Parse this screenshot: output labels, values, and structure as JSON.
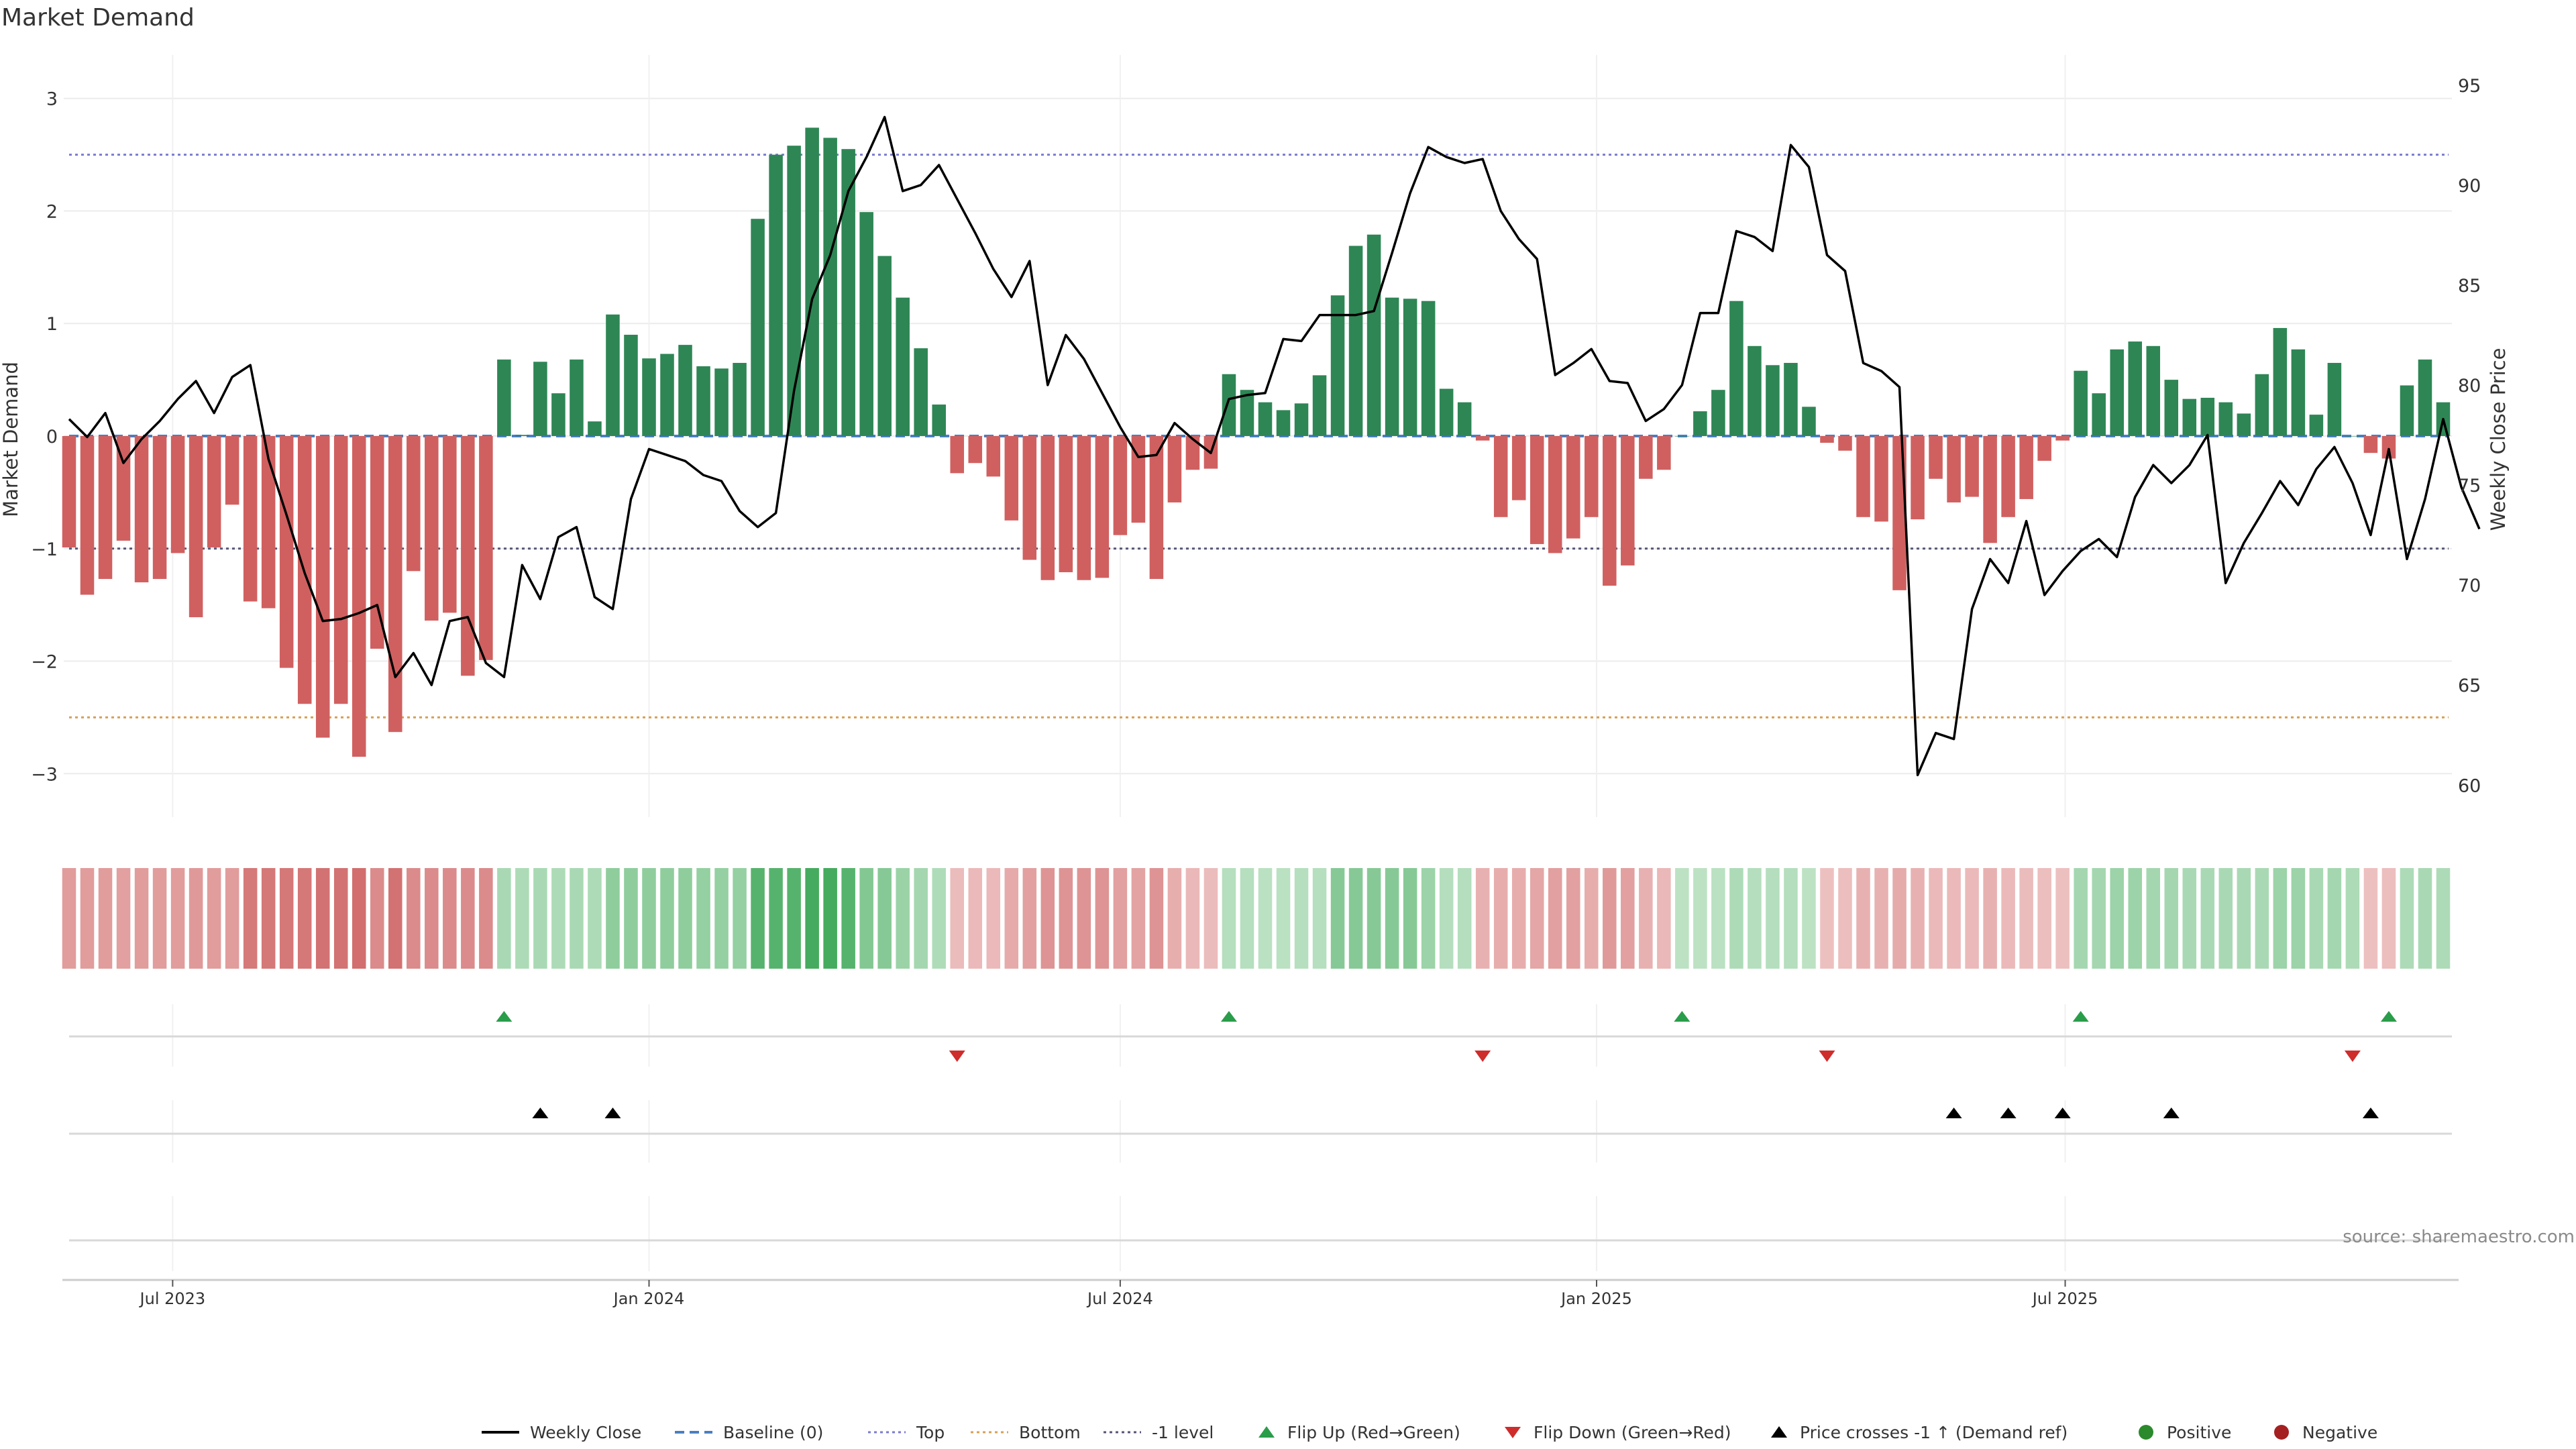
{
  "title": "Market Demand",
  "source": "source: sharemaestro.com",
  "chart_data": {
    "type": "bar+line",
    "start_date": "2023-05-22",
    "interval_days": 7,
    "left_axis": {
      "label": "Market Demand",
      "ylim": [
        -3.35,
        3.35
      ],
      "ticks": [
        3,
        2,
        1,
        0,
        -1,
        -2,
        -3
      ],
      "tick_labels": [
        "3",
        "2",
        "1",
        "0",
        "−1",
        "−2",
        "−3"
      ]
    },
    "right_axis": {
      "label": "Weekly Close Price",
      "ylim": [
        58.6,
        96.3
      ],
      "ticks": [
        95,
        90,
        85,
        80,
        75,
        70,
        65,
        60
      ],
      "tick_labels": [
        "95",
        "90",
        "85",
        "80",
        "75",
        "70",
        "65",
        "60"
      ]
    },
    "x_ticks": [
      {
        "label": "Jul 2023",
        "date": "2023-07-01"
      },
      {
        "label": "Jan 2024",
        "date": "2024-01-01"
      },
      {
        "label": "Jul 2024",
        "date": "2024-07-01"
      },
      {
        "label": "Jan 2025",
        "date": "2025-01-01"
      },
      {
        "label": "Jul 2025",
        "date": "2025-07-01"
      }
    ],
    "reference_lines": [
      {
        "name": "Top",
        "value": 2.5,
        "color": "#7b7bd0",
        "style": "dotted"
      },
      {
        "name": "Bottom",
        "value": -2.5,
        "color": "#d8a055",
        "style": "dotted"
      },
      {
        "name": "-1 level",
        "value": -1,
        "color": "#555577",
        "style": "dotted"
      },
      {
        "name": "Baseline (0)",
        "value": 0,
        "color": "#4a7fc1",
        "style": "dashed"
      }
    ],
    "demand": [
      -0.99,
      -1.41,
      -1.27,
      -0.93,
      -1.3,
      -1.27,
      -1.04,
      -1.61,
      -0.99,
      -0.61,
      -1.47,
      -1.53,
      -2.06,
      -2.38,
      -2.68,
      -2.38,
      -2.85,
      -1.89,
      -2.63,
      -1.2,
      -1.64,
      -1.57,
      -2.13,
      -1.99,
      0.68,
      0.01,
      0.66,
      0.38,
      0.68,
      0.13,
      1.08,
      0.9,
      0.69,
      0.73,
      0.81,
      0.62,
      0.6,
      0.65,
      1.93,
      2.5,
      2.58,
      2.74,
      2.65,
      2.55,
      1.99,
      1.6,
      1.23,
      0.78,
      0.28,
      -0.33,
      -0.24,
      -0.36,
      -0.75,
      -1.1,
      -1.28,
      -1.21,
      -1.28,
      -1.26,
      -0.88,
      -0.77,
      -1.27,
      -0.59,
      -0.3,
      -0.29,
      0.55,
      0.41,
      0.3,
      0.23,
      0.29,
      0.54,
      1.25,
      1.69,
      1.79,
      1.23,
      1.22,
      1.2,
      0.42,
      0.3,
      -0.04,
      -0.72,
      -0.57,
      -0.96,
      -1.04,
      -0.91,
      -0.72,
      -1.33,
      -1.15,
      -0.38,
      -0.3,
      0.0,
      0.22,
      0.41,
      1.2,
      0.8,
      0.63,
      0.65,
      0.26,
      -0.06,
      -0.13,
      -0.72,
      -0.76,
      -1.37,
      -0.74,
      -0.38,
      -0.59,
      -0.54,
      -0.95,
      -0.72,
      -0.56,
      -0.22,
      -0.04,
      0.58,
      0.38,
      0.77,
      0.84,
      0.8,
      0.5,
      0.33,
      0.34,
      0.3,
      0.2,
      0.55,
      0.96,
      0.77,
      0.19,
      0.65,
      0.0,
      -0.15,
      -0.2,
      0.45,
      0.68,
      0.3
    ],
    "weekly_close": [
      78.3,
      77.4,
      78.6,
      76.1,
      77.3,
      78.2,
      79.3,
      80.2,
      78.6,
      80.4,
      81.0,
      76.3,
      73.5,
      70.6,
      68.2,
      68.3,
      68.6,
      69.0,
      65.4,
      66.6,
      65.0,
      68.2,
      68.4,
      66.1,
      65.4,
      71.0,
      69.3,
      72.4,
      72.9,
      69.4,
      68.8,
      74.3,
      76.8,
      76.5,
      76.2,
      75.5,
      75.2,
      73.7,
      72.9,
      73.6,
      79.7,
      84.3,
      86.5,
      89.7,
      91.4,
      93.4,
      89.7,
      90.0,
      91.0,
      89.3,
      87.6,
      85.8,
      84.4,
      86.2,
      80.0,
      82.5,
      81.3,
      79.6,
      77.9,
      76.4,
      76.5,
      78.1,
      77.3,
      76.6,
      79.3,
      79.5,
      79.6,
      82.3,
      82.2,
      83.5,
      83.5,
      83.5,
      83.7,
      86.6,
      89.6,
      91.9,
      91.4,
      91.1,
      91.3,
      88.7,
      87.3,
      86.3,
      80.5,
      81.1,
      81.8,
      80.2,
      80.1,
      78.2,
      78.8,
      80.0,
      83.6,
      83.6,
      87.7,
      87.4,
      86.7,
      92.0,
      90.9,
      86.5,
      85.7,
      81.1,
      80.7,
      79.9,
      60.5,
      62.6,
      62.3,
      68.8,
      71.3,
      70.1,
      73.2,
      69.5,
      70.7,
      71.7,
      72.3,
      71.4,
      74.4,
      76.0,
      75.1,
      76.0,
      77.5,
      70.1,
      72.1,
      73.6,
      75.2,
      74.0,
      75.8,
      76.9,
      75.1,
      72.5,
      76.8,
      71.3,
      74.3,
      78.3,
      74.9,
      72.8
    ],
    "heat_strip": [
      -0.99,
      -0.99,
      -0.99,
      -0.93,
      -0.99,
      -0.99,
      -0.99,
      -1.05,
      -0.99,
      -0.99,
      -1.6,
      -1.61,
      -1.61,
      -1.61,
      -1.72,
      -1.72,
      -1.79,
      -1.29,
      -1.72,
      -1.29,
      -1.29,
      -1.29,
      -1.29,
      -1.29,
      0.68,
      0.62,
      0.68,
      0.62,
      0.68,
      0.62,
      1.08,
      1.08,
      1.08,
      1.08,
      1.08,
      1.0,
      1.0,
      1.0,
      1.93,
      1.93,
      1.93,
      2.2,
      2.2,
      1.93,
      1.25,
      1.2,
      0.9,
      0.75,
      0.6,
      -0.45,
      -0.49,
      -0.49,
      -0.75,
      -0.93,
      -1.14,
      -1.14,
      -1.14,
      -1.14,
      -0.93,
      -0.88,
      -1.14,
      -0.68,
      -0.52,
      -0.45,
      0.5,
      0.5,
      0.42,
      0.42,
      0.5,
      0.5,
      1.2,
      1.2,
      1.2,
      1.2,
      1.2,
      0.88,
      0.52,
      0.52,
      -0.64,
      -0.7,
      -0.7,
      -0.82,
      -0.93,
      -0.93,
      -0.7,
      -1.05,
      -0.93,
      -0.64,
      -0.52,
      0.4,
      0.4,
      0.42,
      0.62,
      0.52,
      0.52,
      0.52,
      0.4,
      -0.38,
      -0.41,
      -0.64,
      -0.64,
      -0.76,
      -0.64,
      -0.49,
      -0.49,
      -0.49,
      -0.64,
      -0.49,
      -0.45,
      -0.41,
      -0.38,
      0.75,
      0.75,
      0.88,
      0.88,
      0.75,
      0.75,
      0.68,
      0.68,
      0.68,
      0.68,
      0.68,
      0.88,
      0.88,
      0.68,
      0.75,
      0.62,
      -0.38,
      -0.41,
      0.62,
      0.68,
      0.62
    ],
    "flip_up_weeks": [
      24,
      64,
      89,
      111,
      128
    ],
    "flip_down_weeks": [
      49,
      78,
      97,
      126
    ],
    "price_cross_weeks": [
      26,
      30,
      104,
      107,
      110,
      116,
      127
    ],
    "legend": [
      "Weekly Close",
      "Baseline (0)",
      "Top",
      "Bottom",
      "-1 level",
      "Flip Up (Red→Green)",
      "Flip Down (Green→Red)",
      "Price crosses -1 ↑ (Demand ref)",
      "Positive",
      "Negative"
    ],
    "colors": {
      "positive_bar": "#2e8655",
      "negative_bar": "#d06060",
      "price_line": "#000000",
      "flip_up": "#2a9d4a",
      "flip_down": "#cf2c2c",
      "cross": "#000000",
      "positive_dot": "#2b8a2b",
      "negative_dot": "#a52020"
    }
  }
}
